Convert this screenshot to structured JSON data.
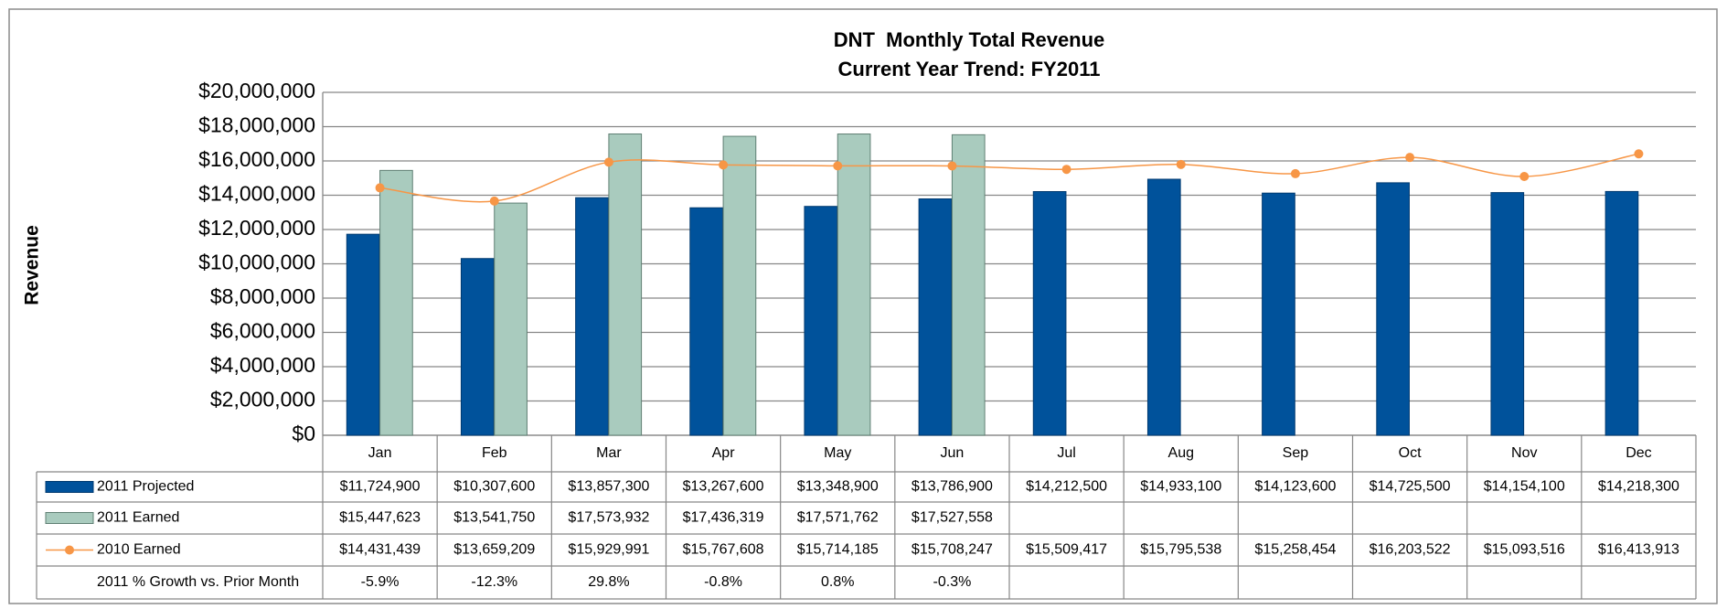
{
  "chart_data": {
    "type": "bar",
    "title": "DNT  Monthly Total Revenue",
    "subtitle": "Current Year Trend: FY2011",
    "y_axis_label": "Revenue",
    "categories": [
      "Jan",
      "Feb",
      "Mar",
      "Apr",
      "May",
      "Jun",
      "Jul",
      "Aug",
      "Sep",
      "Oct",
      "Nov",
      "Dec"
    ],
    "ylim": [
      0,
      20000000
    ],
    "yticks": [
      {
        "value": 0,
        "label": "$0"
      },
      {
        "value": 2000000,
        "label": "$2,000,000"
      },
      {
        "value": 4000000,
        "label": "$4,000,000"
      },
      {
        "value": 6000000,
        "label": "$6,000,000"
      },
      {
        "value": 8000000,
        "label": "$8,000,000"
      },
      {
        "value": 10000000,
        "label": "$10,000,000"
      },
      {
        "value": 12000000,
        "label": "$12,000,000"
      },
      {
        "value": 14000000,
        "label": "$14,000,000"
      },
      {
        "value": 16000000,
        "label": "$16,000,000"
      },
      {
        "value": 18000000,
        "label": "$18,000,000"
      },
      {
        "value": 20000000,
        "label": "$20,000,000"
      }
    ],
    "grid": true,
    "series": [
      {
        "name": "2011 Projected",
        "type": "bar",
        "color": "#00529b",
        "values": [
          11724900,
          10307600,
          13857300,
          13267600,
          13348900,
          13786900,
          14212500,
          14933100,
          14123600,
          14725500,
          14154100,
          14218300
        ],
        "value_labels": [
          "$11,724,900",
          "$10,307,600",
          "$13,857,300",
          "$13,267,600",
          "$13,348,900",
          "$13,786,900",
          "$14,212,500",
          "$14,933,100",
          "$14,123,600",
          "$14,725,500",
          "$14,154,100",
          "$14,218,300"
        ]
      },
      {
        "name": "2011 Earned",
        "type": "bar",
        "color": "#a9cbbe",
        "values": [
          15447623,
          13541750,
          17573932,
          17436319,
          17571762,
          17527558,
          null,
          null,
          null,
          null,
          null,
          null
        ],
        "value_labels": [
          "$15,447,623",
          "$13,541,750",
          "$17,573,932",
          "$17,436,319",
          "$17,571,762",
          "$17,527,558",
          null,
          null,
          null,
          null,
          null,
          null
        ]
      },
      {
        "name": "2010 Earned",
        "type": "line",
        "color": "#f79646",
        "values": [
          14431439,
          13659209,
          15929991,
          15767608,
          15714185,
          15708247,
          15509417,
          15795538,
          15258454,
          16203522,
          15093516,
          16413913
        ],
        "value_labels": [
          "$14,431,439",
          "$13,659,209",
          "$15,929,991",
          "$15,767,608",
          "$15,714,185",
          "$15,708,247",
          "$15,509,417",
          "$15,795,538",
          "$15,258,454",
          "$16,203,522",
          "$15,093,516",
          "$16,413,913"
        ]
      }
    ],
    "table_rows": [
      {
        "name": "2011 % Growth vs. Prior Month",
        "values": [
          -5.9,
          -12.3,
          29.8,
          -0.8,
          0.8,
          -0.3,
          null,
          null,
          null,
          null,
          null,
          null
        ],
        "value_labels": [
          "-5.9%",
          "-12.3%",
          "29.8%",
          "-0.8%",
          "0.8%",
          "-0.3%",
          null,
          null,
          null,
          null,
          null,
          null
        ]
      }
    ]
  }
}
